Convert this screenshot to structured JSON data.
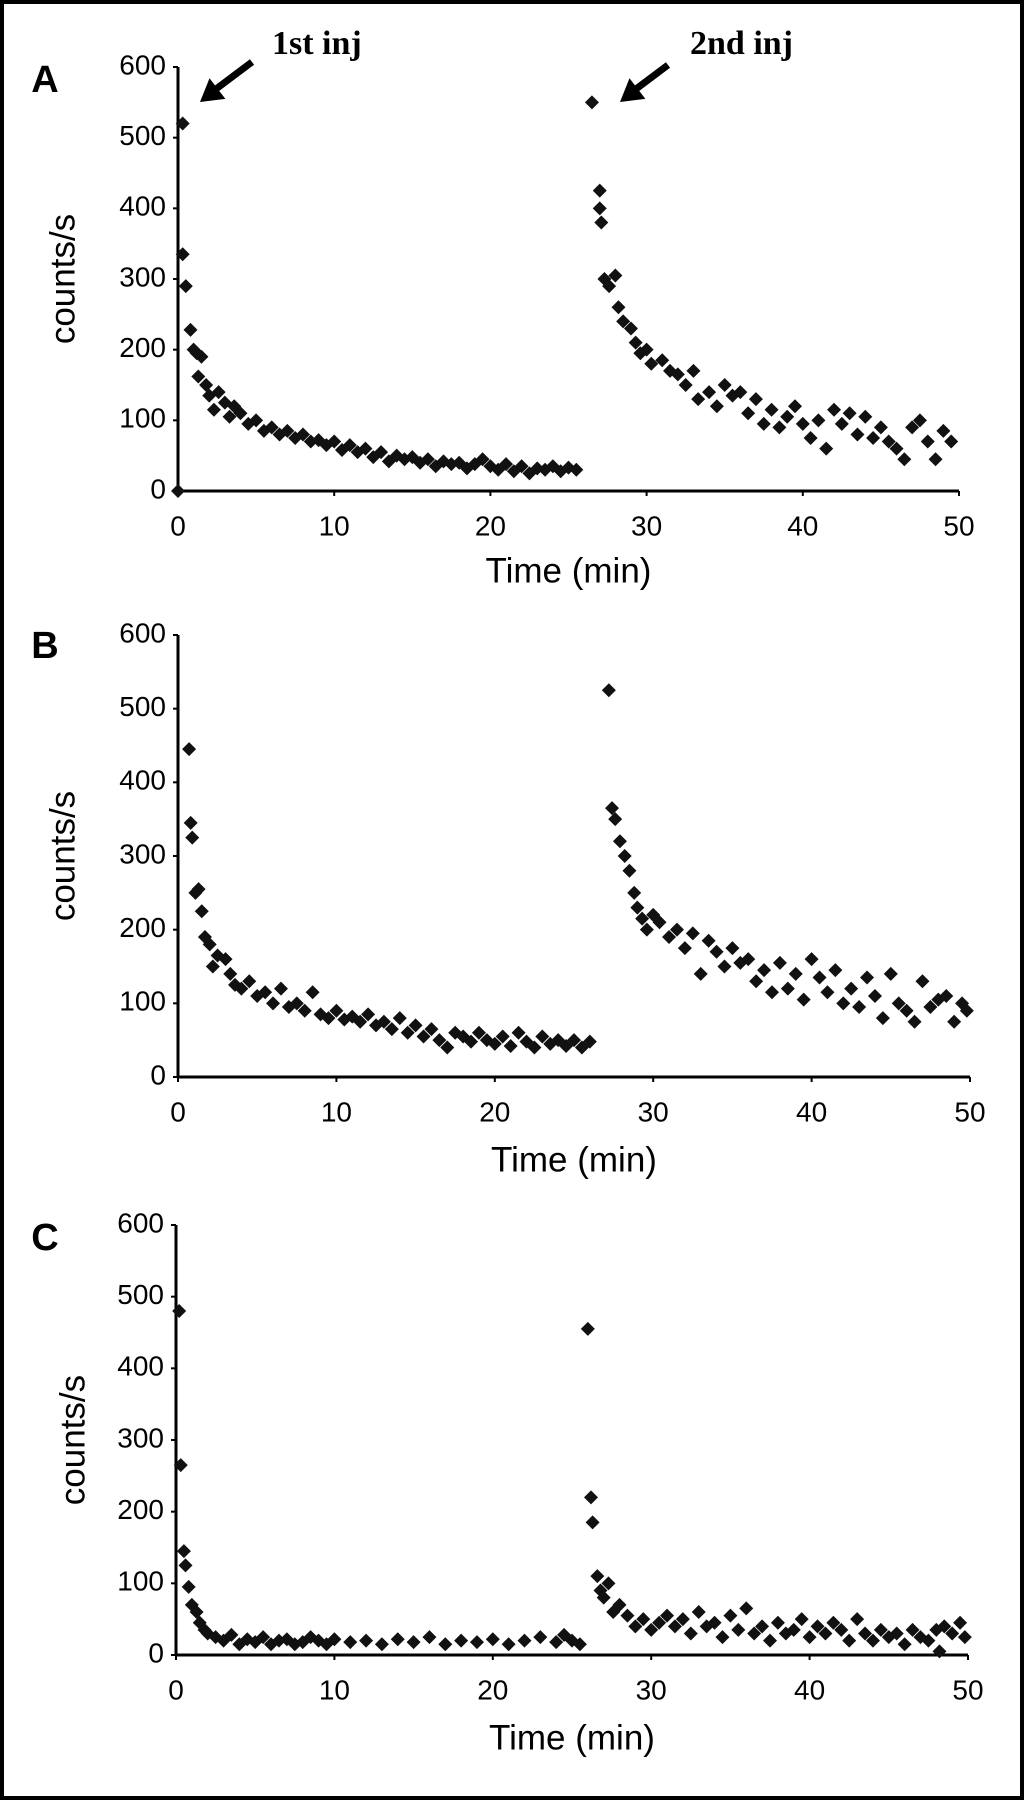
{
  "chart_data": [
    {
      "type": "scatter",
      "label": "A",
      "ylabel": "counts/s",
      "xlabel": "Time (min)",
      "color": "#111111",
      "annotations": [
        "1st inj",
        "2nd inj"
      ],
      "xlim": [
        0,
        50
      ],
      "ylim": [
        0,
        600
      ],
      "xticks": [
        0,
        10,
        20,
        30,
        40,
        50
      ],
      "yticks": [
        0,
        100,
        200,
        300,
        400,
        500,
        600
      ],
      "x": [
        0,
        0.3,
        0.3,
        0.5,
        0.8,
        1,
        1.2,
        1.5,
        1.3,
        1.8,
        2,
        2.3,
        2.6,
        3,
        3.3,
        3.6,
        4,
        4.5,
        5,
        5.5,
        6,
        6.5,
        7,
        7.5,
        8,
        8.5,
        9,
        9.5,
        10,
        10.5,
        11,
        11.5,
        12,
        12.5,
        13,
        13.5,
        14,
        14.5,
        15,
        15.5,
        16,
        16.5,
        17,
        17.5,
        18,
        18.5,
        19,
        19.5,
        20,
        20.5,
        21,
        21.5,
        22,
        22.5,
        23,
        23.5,
        24,
        24.5,
        25,
        25.5,
        26.5,
        27,
        27,
        27.1,
        27.3,
        27.6,
        28,
        28.2,
        28.5,
        29,
        29.3,
        29.6,
        30,
        30.3,
        31,
        31.5,
        32,
        32.5,
        33,
        33.3,
        34,
        34.5,
        35,
        35.5,
        36,
        36.5,
        37,
        37.5,
        38,
        38.5,
        39,
        39.5,
        40,
        40.5,
        41,
        41.5,
        42,
        42.5,
        43,
        43.5,
        44,
        44.5,
        45,
        45.5,
        46,
        46.5,
        47,
        47.5,
        48,
        48.5,
        49,
        49.5
      ],
      "values": [
        0,
        520,
        335,
        290,
        228,
        200,
        195,
        190,
        162,
        150,
        135,
        115,
        140,
        125,
        105,
        120,
        110,
        95,
        100,
        85,
        90,
        80,
        85,
        75,
        80,
        70,
        72,
        65,
        70,
        58,
        65,
        55,
        60,
        48,
        55,
        42,
        50,
        45,
        48,
        40,
        45,
        35,
        42,
        38,
        40,
        32,
        38,
        45,
        35,
        30,
        38,
        28,
        35,
        25,
        32,
        30,
        35,
        28,
        33,
        30,
        550,
        425,
        400,
        380,
        300,
        290,
        305,
        260,
        240,
        230,
        210,
        195,
        200,
        180,
        185,
        170,
        165,
        150,
        170,
        130,
        140,
        120,
        150,
        135,
        140,
        110,
        130,
        95,
        115,
        90,
        105,
        120,
        95,
        75,
        100,
        60,
        115,
        95,
        110,
        80,
        105,
        75,
        90,
        70,
        60,
        45,
        90,
        100,
        70,
        45,
        85,
        70
      ]
    },
    {
      "type": "scatter",
      "label": "B",
      "ylabel": "counts/s",
      "xlabel": "Time (min)",
      "color": "#111111",
      "xlim": [
        0,
        50
      ],
      "ylim": [
        0,
        600
      ],
      "xticks": [
        0,
        10,
        20,
        30,
        40,
        50
      ],
      "yticks": [
        0,
        100,
        200,
        300,
        400,
        500,
        600
      ],
      "x": [
        0.7,
        0.8,
        0.9,
        1.1,
        1.3,
        1.5,
        1.7,
        2,
        2.2,
        2.5,
        3,
        3.3,
        3.6,
        4,
        4.5,
        5,
        5.5,
        6,
        6.5,
        7,
        7.5,
        8,
        8.5,
        9,
        9.5,
        10,
        10.5,
        11,
        11.5,
        12,
        12.5,
        13,
        13.5,
        14,
        14.5,
        15,
        15.5,
        16,
        16.5,
        17,
        17.5,
        18,
        18.5,
        19,
        19.5,
        20,
        20.5,
        21,
        21.5,
        22,
        22.5,
        23,
        23.5,
        24,
        24.5,
        25,
        25.5,
        26,
        27.2,
        27.4,
        27.6,
        27.9,
        28.2,
        28.5,
        28.8,
        29,
        29.3,
        29.6,
        30,
        30.4,
        31,
        31.5,
        32,
        32.5,
        33,
        33.5,
        34,
        34.5,
        35,
        35.5,
        36,
        36.5,
        37,
        37.5,
        38,
        38.5,
        39,
        39.5,
        40,
        40.5,
        41,
        41.5,
        42,
        42.5,
        43,
        43.5,
        44,
        44.5,
        45,
        45.5,
        46,
        46.5,
        47,
        47.5,
        48,
        48.5,
        49,
        49.5,
        49.8
      ],
      "values": [
        445,
        345,
        325,
        250,
        255,
        225,
        190,
        180,
        150,
        165,
        160,
        140,
        125,
        120,
        130,
        110,
        115,
        100,
        120,
        95,
        100,
        90,
        115,
        85,
        80,
        90,
        78,
        82,
        75,
        85,
        70,
        75,
        65,
        80,
        60,
        70,
        55,
        65,
        50,
        40,
        60,
        55,
        48,
        60,
        50,
        45,
        55,
        42,
        60,
        48,
        40,
        55,
        45,
        50,
        42,
        50,
        40,
        48,
        525,
        365,
        350,
        320,
        300,
        280,
        250,
        230,
        215,
        200,
        220,
        210,
        190,
        200,
        175,
        195,
        140,
        185,
        170,
        150,
        175,
        155,
        160,
        130,
        145,
        115,
        155,
        120,
        140,
        105,
        160,
        135,
        115,
        145,
        100,
        120,
        95,
        135,
        110,
        80,
        140,
        100,
        90,
        75,
        130,
        95,
        105,
        110,
        75,
        100,
        90
      ]
    },
    {
      "type": "scatter",
      "label": "C",
      "ylabel": "counts/s",
      "xlabel": "Time (min)",
      "color": "#111111",
      "xlim": [
        0,
        50
      ],
      "ylim": [
        0,
        600
      ],
      "xticks": [
        0,
        10,
        20,
        30,
        40,
        50
      ],
      "yticks": [
        0,
        100,
        200,
        300,
        400,
        500,
        600
      ],
      "x": [
        0.2,
        0.3,
        0.5,
        0.6,
        0.8,
        1,
        1.3,
        1.5,
        1.8,
        2,
        2.5,
        3,
        3.5,
        4,
        4.5,
        5,
        5.5,
        6,
        6.5,
        7,
        7.5,
        8,
        8.5,
        9,
        9.5,
        10,
        11,
        12,
        13,
        14,
        15,
        16,
        17,
        18,
        19,
        20,
        21,
        22,
        23,
        24,
        24.5,
        25,
        25.5,
        26,
        26.2,
        26.3,
        26.6,
        26.8,
        27,
        27.3,
        27.6,
        28,
        28.5,
        29,
        29.5,
        30,
        30.5,
        31,
        31.5,
        32,
        32.5,
        33,
        33.5,
        34,
        34.5,
        35,
        35.5,
        36,
        36.5,
        37,
        37.5,
        38,
        38.5,
        39,
        39.5,
        40,
        40.5,
        41,
        41.5,
        42,
        42.5,
        43,
        43.5,
        44,
        44.5,
        45,
        45.5,
        46,
        46.5,
        47,
        47.5,
        48,
        48.2,
        48.5,
        49,
        49.5,
        49.8
      ],
      "values": [
        480,
        265,
        145,
        125,
        95,
        70,
        60,
        45,
        35,
        30,
        25,
        20,
        28,
        15,
        22,
        18,
        25,
        15,
        20,
        22,
        15,
        18,
        25,
        20,
        15,
        22,
        18,
        20,
        15,
        22,
        18,
        25,
        15,
        20,
        18,
        22,
        15,
        20,
        25,
        18,
        28,
        20,
        15,
        455,
        220,
        185,
        110,
        90,
        80,
        100,
        60,
        70,
        55,
        40,
        50,
        35,
        45,
        55,
        40,
        50,
        30,
        60,
        40,
        45,
        25,
        55,
        35,
        65,
        30,
        40,
        20,
        45,
        30,
        35,
        50,
        25,
        40,
        30,
        45,
        35,
        20,
        50,
        30,
        20,
        35,
        25,
        30,
        15,
        35,
        25,
        20,
        35,
        5,
        40,
        30,
        45,
        25
      ]
    }
  ]
}
